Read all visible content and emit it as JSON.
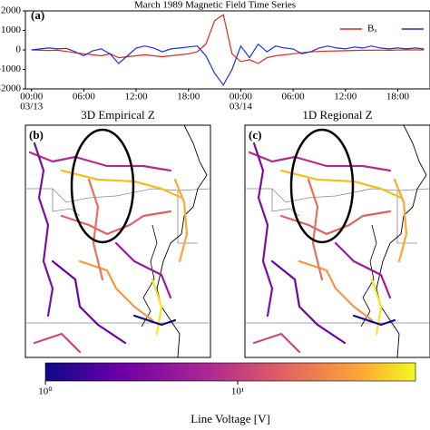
{
  "chart_data": [
    {
      "type": "line",
      "title": "March 1989 Magnetic Field Time Series",
      "panel_label": "(a)",
      "x": [
        0,
        1,
        2,
        3,
        4,
        5,
        6,
        7,
        8,
        9,
        10,
        11,
        12,
        13,
        14,
        15,
        16,
        17,
        18,
        19,
        20,
        21,
        22,
        23,
        24,
        25,
        26,
        27,
        28,
        29,
        30,
        31,
        32,
        33,
        34,
        35,
        36,
        37,
        38,
        39,
        40,
        41,
        42,
        43,
        44,
        45
      ],
      "series": [
        {
          "name": "Bₓ",
          "color": "#e0281e",
          "values": [
            0,
            -20,
            -30,
            -20,
            -80,
            -150,
            -200,
            -250,
            -300,
            -200,
            -400,
            -350,
            -300,
            -250,
            -300,
            -350,
            -300,
            -250,
            -200,
            -100,
            300,
            1500,
            1800,
            -200,
            -600,
            -500,
            -700,
            -400,
            -300,
            -250,
            -200,
            -150,
            -100,
            -80,
            -60,
            -50,
            -40,
            -30,
            -20,
            -20,
            -10,
            -20,
            -10,
            0,
            0,
            0
          ]
        },
        {
          "color": "#1f2fd6",
          "values": [
            0,
            50,
            100,
            50,
            80,
            -100,
            -300,
            -50,
            50,
            -200,
            -700,
            -300,
            100,
            200,
            100,
            -100,
            50,
            100,
            150,
            200,
            -300,
            -1200,
            -1800,
            -1000,
            200,
            -400,
            300,
            -100,
            200,
            100,
            50,
            -200,
            -100,
            100,
            200,
            100,
            50,
            150,
            100,
            200,
            100,
            50,
            100,
            50,
            100,
            50
          ]
        }
      ],
      "xlim": [
        -0.7,
        45.7
      ],
      "xticks": [
        {
          "value": 0,
          "label": "00:00"
        },
        {
          "value": 6,
          "label": "06:00"
        },
        {
          "value": 12,
          "label": "12:00"
        },
        {
          "value": 18,
          "label": "18:00"
        },
        {
          "value": 24,
          "label": "00:00"
        },
        {
          "value": 30,
          "label": "06:00"
        },
        {
          "value": 36,
          "label": "12:00"
        },
        {
          "value": 42,
          "label": "18:00"
        }
      ],
      "xdates": [
        {
          "value": 0,
          "label": "03/13"
        },
        {
          "value": 24,
          "label": "03/14"
        }
      ],
      "ylim": [
        -2000,
        2000
      ],
      "yticks": [
        -2000,
        -1000,
        0,
        1000,
        2000
      ]
    },
    {
      "type": "colorbar",
      "label": "Line Voltage [V]",
      "log": true,
      "clim": [
        1,
        84
      ],
      "ticks": [
        {
          "value": 1,
          "label": "10⁰"
        },
        {
          "value": 10,
          "label": "10¹"
        }
      ]
    }
  ],
  "maps": [
    {
      "label": "(b)",
      "title": "3D Empirical Z"
    },
    {
      "label": "(c)",
      "title": "1D Regional Z"
    }
  ]
}
